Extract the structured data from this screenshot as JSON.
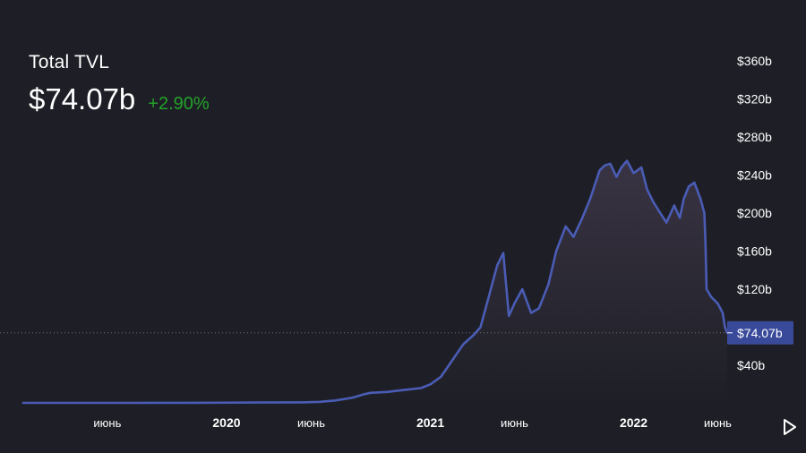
{
  "header": {
    "title": "Total TVL",
    "value": "$74.07b",
    "change": "+2.90%",
    "change_color": "#23a329"
  },
  "colors": {
    "background": "#1e1f26",
    "line": "#4a5cb5",
    "area_top": "#3b3545",
    "price_tag": "#3a4a9a"
  },
  "icons": {
    "play": "play-triangle-icon"
  },
  "chart_data": {
    "type": "area",
    "title": "Total TVL",
    "y_axis_position": "right",
    "ylim": [
      0,
      380
    ],
    "y_unit": "billion USD",
    "y_ticks": [
      {
        "value": 40,
        "label": "$40b"
      },
      {
        "value": 120,
        "label": "$120b"
      },
      {
        "value": 160,
        "label": "$160b"
      },
      {
        "value": 200,
        "label": "$200b"
      },
      {
        "value": 240,
        "label": "$240b"
      },
      {
        "value": 280,
        "label": "$280b"
      },
      {
        "value": 320,
        "label": "$320b"
      },
      {
        "value": 360,
        "label": "$360b"
      }
    ],
    "x_ticks": [
      {
        "date": "2019-06-01",
        "label": "июнь",
        "major": false
      },
      {
        "date": "2020-01-01",
        "label": "2020",
        "major": true
      },
      {
        "date": "2020-06-01",
        "label": "июнь",
        "major": false
      },
      {
        "date": "2021-01-01",
        "label": "2021",
        "major": true
      },
      {
        "date": "2021-06-01",
        "label": "июнь",
        "major": false
      },
      {
        "date": "2022-01-01",
        "label": "2022",
        "major": true
      },
      {
        "date": "2022-06-01",
        "label": "июнь",
        "major": false
      }
    ],
    "last_value": {
      "value": 74.07,
      "label": "$74.07b"
    },
    "series": [
      {
        "x": [
          "2019-01-01",
          "2019-06-01",
          "2019-11-01",
          "2020-03-01",
          "2020-05-15",
          "2020-06-15",
          "2020-07-15",
          "2020-08-15",
          "2020-09-01",
          "2020-09-15",
          "2020-10-15",
          "2020-11-15",
          "2020-12-15",
          "2021-01-01",
          "2021-01-20",
          "2021-02-01",
          "2021-02-15",
          "2021-03-01",
          "2021-03-20",
          "2021-04-01",
          "2021-04-15",
          "2021-05-01",
          "2021-05-12",
          "2021-05-22",
          "2021-06-01",
          "2021-06-15",
          "2021-07-01",
          "2021-07-15",
          "2021-08-01",
          "2021-08-15",
          "2021-09-01",
          "2021-09-15",
          "2021-10-01",
          "2021-10-15",
          "2021-11-01",
          "2021-11-10",
          "2021-11-20",
          "2021-12-01",
          "2021-12-10",
          "2021-12-20",
          "2022-01-01",
          "2022-01-15",
          "2022-01-25",
          "2022-02-05",
          "2022-02-20",
          "2022-03-01",
          "2022-03-15",
          "2022-03-25",
          "2022-04-01",
          "2022-04-10",
          "2022-04-20",
          "2022-05-01",
          "2022-05-08",
          "2022-05-10",
          "2022-05-12",
          "2022-05-20",
          "2022-06-01",
          "2022-06-10",
          "2022-06-14",
          "2022-06-18"
        ],
        "y": [
          0.5,
          0.5,
          0.6,
          0.8,
          1,
          1.5,
          3,
          6,
          9,
          11,
          12,
          14,
          16,
          20,
          28,
          38,
          50,
          62,
          72,
          80,
          110,
          145,
          158,
          92,
          105,
          120,
          95,
          100,
          125,
          160,
          186,
          175,
          195,
          215,
          245,
          250,
          252,
          238,
          248,
          255,
          242,
          248,
          225,
          212,
          198,
          190,
          208,
          195,
          215,
          228,
          232,
          215,
          200,
          170,
          120,
          112,
          105,
          95,
          80,
          74.07
        ]
      }
    ]
  }
}
